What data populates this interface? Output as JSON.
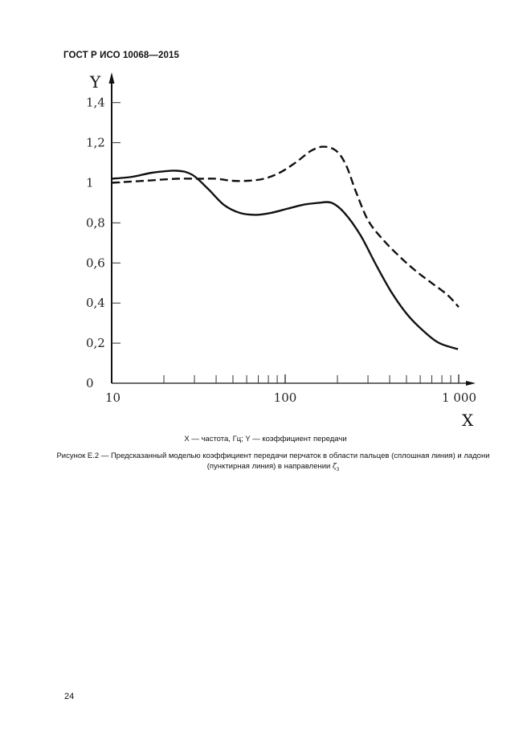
{
  "header": {
    "title": "ГОСТ Р ИСО 10068—2015"
  },
  "figure": {
    "legend_text": "X — частота, Гц; Y — коэффициент передачи",
    "caption_main": "Рисунок Е.2 — Предсказанный моделью коэффициент передачи перчаток в области пальцев (сплошная линия) и ладони (пунктирная линия) в направлении",
    "caption_symbol": "ζ",
    "caption_subscript": "3"
  },
  "page": {
    "number": "24"
  },
  "chart_data": {
    "type": "line",
    "title": "",
    "xlabel": "X",
    "ylabel": "Y",
    "xscale": "log",
    "xlim": [
      10,
      1000
    ],
    "ylim": [
      0,
      1.4
    ],
    "grid": false,
    "legend": "none (described in caption)",
    "x_tick_labels": [
      "10",
      "100",
      "1 000"
    ],
    "y_tick_labels": [
      "0",
      "0,2",
      "0,4",
      "0,6",
      "0,8",
      "1",
      "1,2",
      "1,4"
    ],
    "y_ticks": [
      0,
      0.2,
      0.4,
      0.6,
      0.8,
      1.0,
      1.2,
      1.4
    ],
    "x_minor_ticks": [
      20,
      30,
      40,
      50,
      60,
      70,
      80,
      90,
      200,
      300,
      400,
      500,
      600,
      700,
      800,
      900
    ],
    "series": [
      {
        "name": "Область пальцев (сплошная линия)",
        "style": "solid",
        "color": "#111111",
        "x": [
          10,
          13.2,
          17.1,
          23.6,
          29.1,
          35.9,
          44.3,
          54.6,
          67.4,
          83.1,
          102.5,
          126.5,
          156,
          185,
          219.5,
          270.9,
          334.2,
          412.3,
          508.6,
          627.5,
          774.2,
          990
        ],
        "y": [
          1.02,
          1.03,
          1.05,
          1.06,
          1.04,
          0.97,
          0.89,
          0.85,
          0.84,
          0.85,
          0.87,
          0.89,
          0.9,
          0.9,
          0.85,
          0.74,
          0.59,
          0.45,
          0.34,
          0.26,
          0.2,
          0.17
        ]
      },
      {
        "name": "Область ладони (пунктирная линия)",
        "style": "dashed",
        "color": "#111111",
        "x": [
          10,
          15.5,
          23.6,
          32.5,
          40.1,
          49.5,
          61,
          75.3,
          92.9,
          114.6,
          141.3,
          166.5,
          196.3,
          223.7,
          257.2,
          301.6,
          372,
          459,
          566.3,
          698.6,
          862.1,
          1000
        ],
        "y": [
          1.0,
          1.01,
          1.02,
          1.02,
          1.02,
          1.01,
          1.01,
          1.02,
          1.05,
          1.1,
          1.16,
          1.18,
          1.16,
          1.09,
          0.95,
          0.81,
          0.71,
          0.63,
          0.56,
          0.5,
          0.44,
          0.38
        ]
      }
    ]
  }
}
